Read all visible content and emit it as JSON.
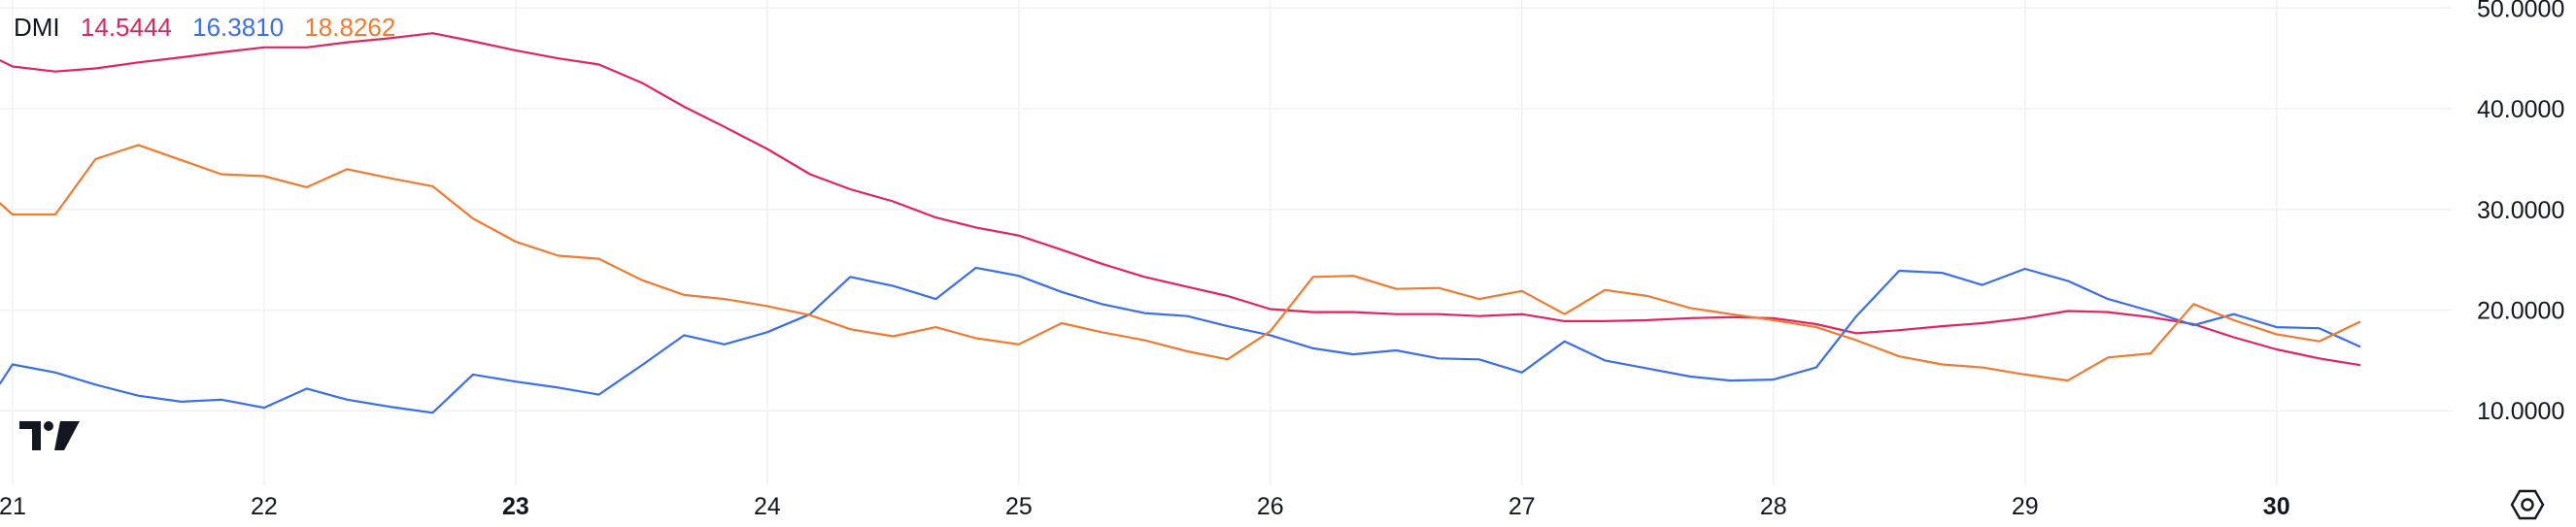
{
  "indicator": {
    "name": "DMI",
    "values": [
      {
        "label": "14.5444",
        "color": "#e0245e"
      },
      {
        "label": "16.3810",
        "color": "#3b6ee8"
      },
      {
        "label": "18.8262",
        "color": "#f07a30"
      }
    ]
  },
  "logo": {
    "name": "tradingview-logo-icon"
  },
  "settings": {
    "icon": "settings-icon"
  },
  "chart_data": {
    "type": "line",
    "title": "DMI",
    "x_tick_labels": [
      "21",
      "22",
      "23",
      "24",
      "25",
      "26",
      "27",
      "28",
      "29",
      "30"
    ],
    "x_tick_positions": [
      21,
      22,
      23,
      24,
      25,
      26,
      27,
      28,
      29,
      30
    ],
    "x_tick_bold": [
      "23",
      "30"
    ],
    "y_tick_labels": [
      "10.0000",
      "20.0000",
      "30.0000",
      "40.0000",
      "50.0000"
    ],
    "y_ticks": [
      10,
      20,
      30,
      40,
      50
    ],
    "xlim": [
      20.95,
      30.7
    ],
    "ylim": [
      2.6,
      50.8
    ],
    "grid": true,
    "series": [
      {
        "color": "#e0245e",
        "x": [
          20.95,
          21.0,
          21.17,
          21.33,
          21.5,
          21.67,
          21.83,
          22.0,
          22.17,
          22.33,
          22.5,
          22.67,
          22.83,
          23.0,
          23.17,
          23.33,
          23.5,
          23.67,
          23.83,
          24.0,
          24.17,
          24.33,
          24.5,
          24.67,
          24.83,
          25.0,
          25.17,
          25.33,
          25.5,
          25.67,
          25.83,
          26.0,
          26.17,
          26.33,
          26.5,
          26.67,
          26.83,
          27.0,
          27.17,
          27.33,
          27.5,
          27.67,
          27.83,
          28.0,
          28.17,
          28.33,
          28.5,
          28.67,
          28.83,
          29.0,
          29.17,
          29.33,
          29.5,
          29.67,
          29.83,
          30.0,
          30.17,
          30.33
        ],
        "y": [
          44.8,
          44.2,
          43.7,
          44.0,
          44.6,
          45.1,
          45.6,
          46.1,
          46.1,
          46.6,
          47.0,
          47.5,
          46.7,
          45.8,
          45.0,
          44.4,
          42.6,
          40.2,
          38.2,
          36.0,
          33.5,
          32.0,
          30.8,
          29.2,
          28.2,
          27.4,
          26.0,
          24.6,
          23.3,
          22.3,
          21.4,
          20.1,
          19.8,
          19.8,
          19.6,
          19.6,
          19.4,
          19.6,
          18.9,
          18.9,
          19.0,
          19.2,
          19.3,
          19.2,
          18.6,
          17.7,
          18.0,
          18.4,
          18.7,
          19.2,
          19.9,
          19.8,
          19.3,
          18.6,
          17.3,
          16.1,
          15.2,
          14.5444
        ]
      },
      {
        "color": "#3b6ee8",
        "x": [
          20.95,
          21.0,
          21.17,
          21.33,
          21.5,
          21.67,
          21.83,
          22.0,
          22.17,
          22.33,
          22.5,
          22.67,
          22.83,
          23.0,
          23.17,
          23.33,
          23.5,
          23.67,
          23.83,
          24.0,
          24.17,
          24.33,
          24.5,
          24.67,
          24.83,
          25.0,
          25.17,
          25.33,
          25.5,
          25.67,
          25.83,
          26.0,
          26.17,
          26.33,
          26.5,
          26.67,
          26.83,
          27.0,
          27.17,
          27.33,
          27.5,
          27.67,
          27.83,
          28.0,
          28.17,
          28.33,
          28.5,
          28.67,
          28.83,
          29.0,
          29.17,
          29.33,
          29.5,
          29.67,
          29.83,
          30.0,
          30.17,
          30.33
        ],
        "y": [
          12.7,
          14.6,
          13.8,
          12.6,
          11.5,
          10.9,
          11.1,
          10.3,
          12.2,
          11.1,
          10.4,
          9.8,
          13.6,
          12.9,
          12.3,
          11.6,
          14.5,
          17.5,
          16.6,
          17.8,
          19.6,
          23.3,
          22.4,
          21.1,
          24.2,
          23.4,
          21.8,
          20.6,
          19.7,
          19.4,
          18.4,
          17.5,
          16.2,
          15.6,
          16.0,
          15.2,
          15.1,
          13.8,
          16.9,
          15.0,
          14.2,
          13.4,
          13.0,
          13.1,
          14.3,
          19.4,
          23.9,
          23.7,
          22.5,
          24.1,
          22.9,
          21.1,
          19.9,
          18.5,
          19.6,
          18.3,
          18.2,
          16.381
        ]
      },
      {
        "color": "#f07a30",
        "x": [
          20.95,
          21.0,
          21.17,
          21.33,
          21.5,
          21.67,
          21.83,
          22.0,
          22.17,
          22.33,
          22.5,
          22.67,
          22.83,
          23.0,
          23.17,
          23.33,
          23.5,
          23.67,
          23.83,
          24.0,
          24.17,
          24.33,
          24.5,
          24.67,
          24.83,
          25.0,
          25.17,
          25.33,
          25.5,
          25.67,
          25.83,
          26.0,
          26.17,
          26.33,
          26.5,
          26.67,
          26.83,
          27.0,
          27.17,
          27.33,
          27.5,
          27.67,
          27.83,
          28.0,
          28.17,
          28.33,
          28.5,
          28.67,
          28.83,
          29.0,
          29.17,
          29.33,
          29.5,
          29.67,
          29.83,
          30.0,
          30.17,
          30.33
        ],
        "y": [
          30.6,
          29.5,
          29.5,
          35.0,
          36.4,
          34.9,
          33.5,
          33.3,
          32.2,
          34.0,
          33.1,
          32.3,
          29.1,
          26.8,
          25.4,
          25.1,
          23.0,
          21.5,
          21.1,
          20.4,
          19.5,
          18.1,
          17.4,
          18.3,
          17.2,
          16.6,
          18.7,
          17.8,
          17.0,
          15.9,
          15.1,
          17.9,
          23.3,
          23.4,
          22.1,
          22.2,
          21.1,
          21.9,
          19.6,
          22.0,
          21.4,
          20.2,
          19.6,
          19.0,
          18.3,
          17.0,
          15.4,
          14.6,
          14.3,
          13.6,
          13.0,
          15.3,
          15.7,
          20.6,
          19.0,
          17.6,
          16.9,
          18.8262
        ]
      }
    ]
  }
}
